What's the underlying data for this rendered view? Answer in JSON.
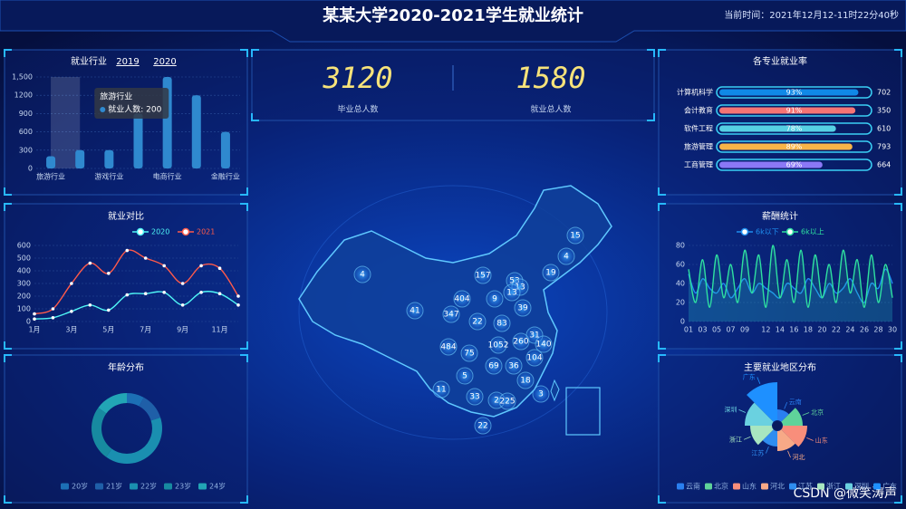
{
  "header": {
    "title": "某某大学2020-2021学生就业统计",
    "time": "当前时间：2021年12月12-11时22分40秒"
  },
  "stats": [
    {
      "value": 3120,
      "label": "毕业总人数"
    },
    {
      "value": 1580,
      "label": "就业总人数"
    }
  ],
  "map": {
    "values": [
      15,
      4,
      4,
      19,
      157,
      53,
      13,
      404,
      9,
      13,
      41,
      347,
      39,
      22,
      83,
      31,
      484,
      75,
      1052,
      260,
      140,
      104,
      5,
      69,
      36,
      18,
      11,
      33,
      2,
      225,
      3,
      22
    ]
  },
  "watermark": "CSDN @微笑涛声",
  "chart_data": [
    {
      "type": "bar",
      "title": "就业行业",
      "tabs": [
        "2019",
        "2020"
      ],
      "categories": [
        "旅游行业",
        null,
        "游戏行业",
        null,
        "电商行业",
        null,
        "金融行业"
      ],
      "values": [
        200,
        300,
        300,
        900,
        1500,
        1200,
        600
      ],
      "color": "#2f89cf",
      "ylim": [
        0,
        1500
      ],
      "yticks": [
        0,
        300,
        600,
        900,
        1200,
        {
          "value": 1500,
          "label": "1,500"
        }
      ],
      "grid": true,
      "tooltip": {
        "title": "旅游行业",
        "label": "就业人数: 200"
      }
    },
    {
      "type": "line",
      "title": "就业对比",
      "smooth": true,
      "dots": true,
      "categories": [
        "1月",
        null,
        "3月",
        null,
        "5月",
        null,
        "7月",
        null,
        "9月",
        null,
        "11月",
        null
      ],
      "series": [
        {
          "name": "2020",
          "color": "#4ff5f5",
          "values": [
            20,
            30,
            80,
            130,
            90,
            210,
            220,
            230,
            130,
            230,
            220,
            130
          ]
        },
        {
          "name": "2021",
          "color": "#ff5a4a",
          "values": [
            60,
            100,
            300,
            460,
            380,
            560,
            500,
            440,
            300,
            440,
            420,
            200
          ]
        }
      ],
      "ylim": [
        0,
        600
      ],
      "yticks": [
        0,
        100,
        200,
        300,
        400,
        500,
        600
      ],
      "grid": true
    },
    {
      "type": "donut",
      "title": "年龄分布",
      "categories": [
        "20岁",
        "21岁",
        "22岁",
        "23岁",
        "24岁"
      ],
      "values": [
        8,
        12,
        40,
        25,
        15
      ],
      "colors": [
        "#1c6fb5",
        "#1f5fa8",
        "#1a8fb0",
        "#178aa0",
        "#22a5b5"
      ]
    },
    {
      "type": "progress",
      "title": "各专业就业率",
      "categories": [
        "计算机科学",
        "会计教育",
        "软件工程",
        "旅游管理",
        "工商管理"
      ],
      "values": [
        93,
        91,
        78,
        89,
        69
      ],
      "value_labels": [
        "93%",
        "91%",
        "78%",
        "89%",
        "69%"
      ],
      "counts": [
        702,
        350,
        610,
        793,
        664
      ],
      "xlim": [
        0,
        100
      ],
      "colors": [
        "#1089e7",
        "#f57474",
        "#56d0e3",
        "#f8b448",
        "#8b78f6"
      ]
    },
    {
      "type": "line",
      "title": "薪酬统计",
      "smooth": true,
      "area": true,
      "categories": [
        "01",
        null,
        "03",
        null,
        "05",
        null,
        "07",
        null,
        "09",
        null,
        null,
        "12",
        null,
        "14",
        null,
        "16",
        null,
        "18",
        null,
        "20",
        null,
        "22",
        null,
        "24",
        null,
        "26",
        null,
        "28",
        null,
        "30"
      ],
      "series": [
        {
          "name": "6k以下",
          "color": "#1f8ff0",
          "values": [
            50,
            30,
            45,
            35,
            30,
            40,
            25,
            35,
            45,
            30,
            40,
            35,
            30,
            25,
            40,
            35,
            30,
            45,
            35,
            25,
            40,
            30,
            35,
            45,
            30,
            20,
            40,
            35,
            55,
            40
          ]
        },
        {
          "name": "6k以上",
          "color": "#2ee0a0",
          "values": [
            55,
            20,
            65,
            15,
            70,
            25,
            60,
            20,
            75,
            30,
            70,
            15,
            80,
            25,
            65,
            20,
            75,
            15,
            70,
            25,
            60,
            20,
            75,
            30,
            65,
            15,
            70,
            20,
            60,
            25
          ]
        }
      ],
      "ylim": [
        0,
        80
      ],
      "yticks": [
        0,
        20,
        40,
        60,
        80
      ],
      "grid": true
    },
    {
      "type": "rose",
      "title": "主要就业地区分布",
      "categories": [
        "云南",
        "北京",
        "山东",
        "河北",
        "江苏",
        "浙江",
        "深圳",
        "广东"
      ],
      "values": [
        10,
        20,
        25,
        20,
        15,
        22,
        28,
        40
      ],
      "colors": [
        "#2a7ff0",
        "#5fd39a",
        "#f88e7b",
        "#f7a987",
        "#2f8df0",
        "#a8e6c0",
        "#6ad1e0",
        "#1e90ff"
      ]
    }
  ]
}
